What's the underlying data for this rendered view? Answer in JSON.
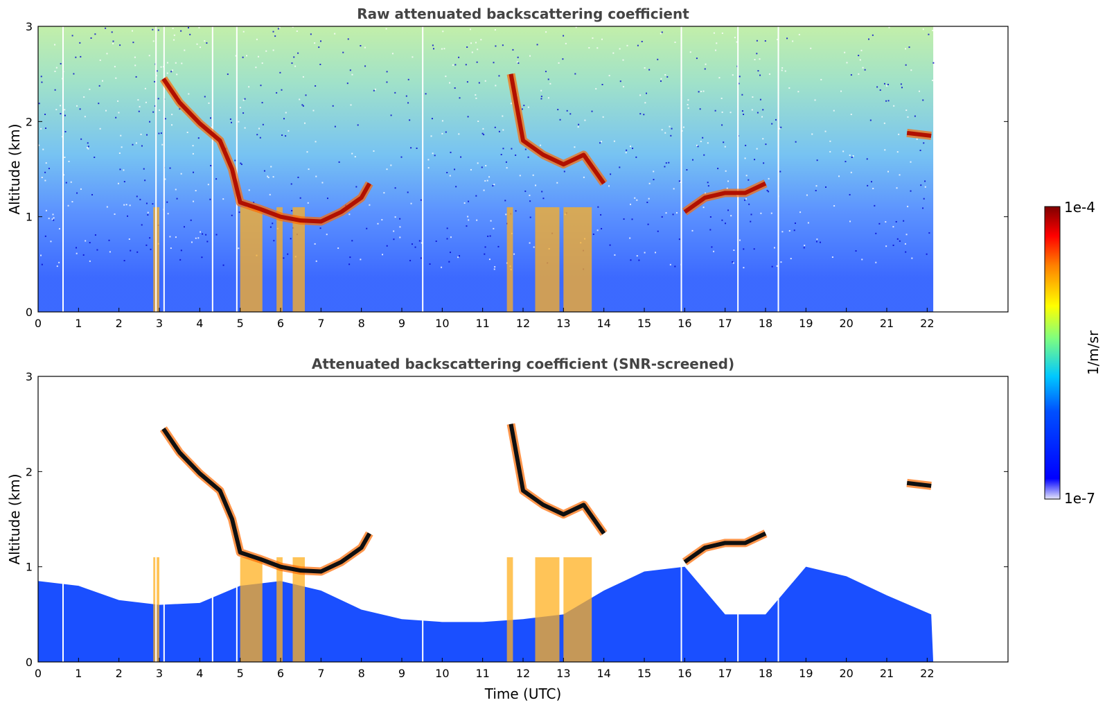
{
  "chart_data": [
    {
      "type": "heatmap",
      "title": "Raw attenuated backscattering coefficient",
      "xlabel": "",
      "ylabel": "Altitude (km)",
      "x_ticks": [
        "0",
        "1",
        "2",
        "3",
        "4",
        "5",
        "6",
        "7",
        "8",
        "9",
        "10",
        "11",
        "12",
        "13",
        "14",
        "15",
        "16",
        "17",
        "18",
        "19",
        "20",
        "21",
        "22"
      ],
      "y_ticks": [
        "0",
        "1",
        "2",
        "3"
      ],
      "xlim": [
        0,
        24
      ],
      "ylim": [
        0,
        3
      ],
      "data_x_end": 22.15,
      "cloud_layer": [
        {
          "time": 3.1,
          "altitude": 2.45
        },
        {
          "time": 3.5,
          "altitude": 2.2
        },
        {
          "time": 4.0,
          "altitude": 1.98
        },
        {
          "time": 4.5,
          "altitude": 1.8
        },
        {
          "time": 4.8,
          "altitude": 1.5
        },
        {
          "time": 5.0,
          "altitude": 1.15
        },
        {
          "time": 5.5,
          "altitude": 1.08
        },
        {
          "time": 6.0,
          "altitude": 1.0
        },
        {
          "time": 6.5,
          "altitude": 0.96
        },
        {
          "time": 7.0,
          "altitude": 0.95
        },
        {
          "time": 7.5,
          "altitude": 1.05
        },
        {
          "time": 8.0,
          "altitude": 1.2
        },
        {
          "time": 8.2,
          "altitude": 1.35
        },
        {
          "time": 11.7,
          "altitude": 2.5
        },
        {
          "time": 12.0,
          "altitude": 1.8
        },
        {
          "time": 12.5,
          "altitude": 1.65
        },
        {
          "time": 13.0,
          "altitude": 1.55
        },
        {
          "time": 13.5,
          "altitude": 1.65
        },
        {
          "time": 14.0,
          "altitude": 1.35
        },
        {
          "time": 16.0,
          "altitude": 1.05
        },
        {
          "time": 16.5,
          "altitude": 1.2
        },
        {
          "time": 17.0,
          "altitude": 1.25
        },
        {
          "time": 17.5,
          "altitude": 1.25
        },
        {
          "time": 18.0,
          "altitude": 1.35
        },
        {
          "time": 21.5,
          "altitude": 1.88
        },
        {
          "time": 22.1,
          "altitude": 1.85
        }
      ],
      "grid": false
    },
    {
      "type": "heatmap",
      "title": "Attenuated backscattering coefficient (SNR-screened)",
      "xlabel": "Time (UTC)",
      "ylabel": "Altitude (km)",
      "x_ticks": [
        "0",
        "1",
        "2",
        "3",
        "4",
        "5",
        "6",
        "7",
        "8",
        "9",
        "10",
        "11",
        "12",
        "13",
        "14",
        "15",
        "16",
        "17",
        "18",
        "19",
        "20",
        "21",
        "22"
      ],
      "y_ticks": [
        "0",
        "1",
        "2",
        "3"
      ],
      "xlim": [
        0,
        24
      ],
      "ylim": [
        0,
        3
      ],
      "data_x_end": 22.15,
      "boundary_layer_top": [
        {
          "time": 0.0,
          "altitude": 0.85
        },
        {
          "time": 1.0,
          "altitude": 0.8
        },
        {
          "time": 2.0,
          "altitude": 0.65
        },
        {
          "time": 3.0,
          "altitude": 0.6
        },
        {
          "time": 4.0,
          "altitude": 0.62
        },
        {
          "time": 5.0,
          "altitude": 0.8
        },
        {
          "time": 6.0,
          "altitude": 0.85
        },
        {
          "time": 7.0,
          "altitude": 0.75
        },
        {
          "time": 8.0,
          "altitude": 0.55
        },
        {
          "time": 9.0,
          "altitude": 0.45
        },
        {
          "time": 10.0,
          "altitude": 0.42
        },
        {
          "time": 11.0,
          "altitude": 0.42
        },
        {
          "time": 12.0,
          "altitude": 0.45
        },
        {
          "time": 13.0,
          "altitude": 0.5
        },
        {
          "time": 14.0,
          "altitude": 0.75
        },
        {
          "time": 15.0,
          "altitude": 0.95
        },
        {
          "time": 16.0,
          "altitude": 1.0
        },
        {
          "time": 17.0,
          "altitude": 0.5
        },
        {
          "time": 18.0,
          "altitude": 0.5
        },
        {
          "time": 19.0,
          "altitude": 1.0
        },
        {
          "time": 20.0,
          "altitude": 0.9
        },
        {
          "time": 21.0,
          "altitude": 0.7
        },
        {
          "time": 22.1,
          "altitude": 0.5
        }
      ],
      "grid": false
    }
  ],
  "colorbar": {
    "label": "1/m/sr",
    "max_label": "1e-4",
    "min_label": "1e-7",
    "colormap": [
      "#e6e6fa",
      "#0000ff",
      "#00ffff",
      "#7fff7f",
      "#ffff00",
      "#ff7f00",
      "#ff0000",
      "#7f0000"
    ]
  }
}
